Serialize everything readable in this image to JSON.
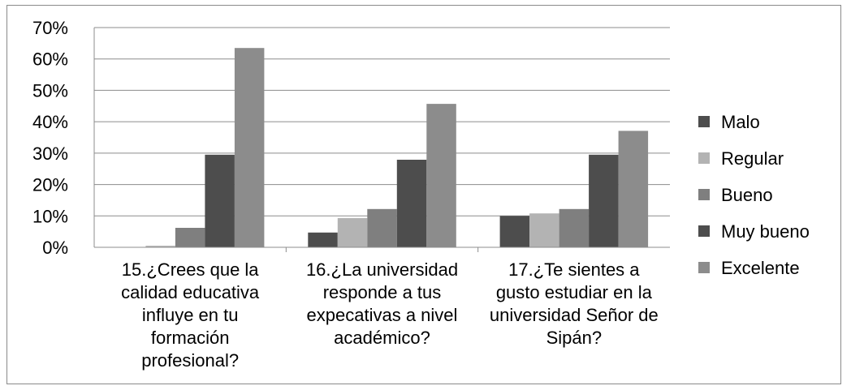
{
  "chart_data": {
    "type": "bar",
    "categories": [
      [
        "15.¿Crees que la",
        "calidad educativa",
        "influye en tu",
        "formación",
        "profesional?"
      ],
      [
        "16.¿La universidad",
        "responde a tus",
        "expecativas  a nivel",
        "académico?"
      ],
      [
        "17.¿Te sientes a",
        "gusto estudiar en la",
        "universidad Señor de",
        "Sipán?"
      ]
    ],
    "series": [
      {
        "name": "Malo",
        "values": [
          0,
          4.7,
          10.0
        ],
        "color": "#4d4d4d"
      },
      {
        "name": "Regular",
        "values": [
          0.5,
          9.3,
          10.8
        ],
        "color": "#b3b3b3"
      },
      {
        "name": "Bueno",
        "values": [
          6.2,
          12.2,
          12.2
        ],
        "color": "#7f7f7f"
      },
      {
        "name": "Muy bueno",
        "values": [
          29.5,
          27.9,
          29.5
        ],
        "color": "#4d4d4d"
      },
      {
        "name": "Excelente",
        "values": [
          63.5,
          45.7,
          37.1
        ],
        "color": "#8c8c8c"
      }
    ],
    "yticks": [
      "0%",
      "10%",
      "20%",
      "30%",
      "40%",
      "50%",
      "60%",
      "70%"
    ],
    "ylim": [
      0,
      70
    ],
    "grid": true,
    "legend": "right"
  }
}
